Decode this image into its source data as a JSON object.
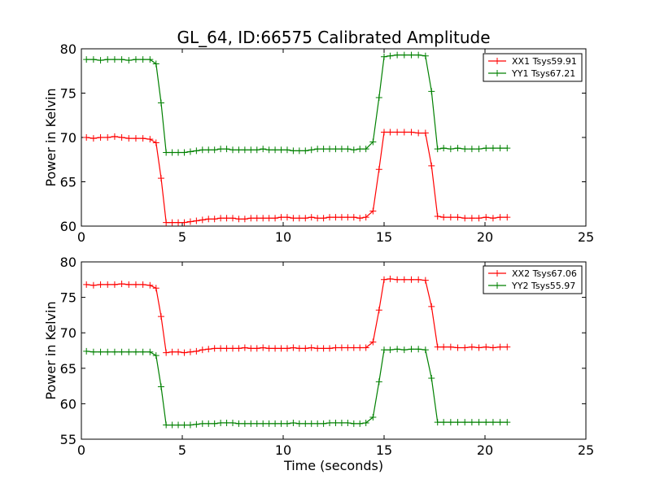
{
  "title": "GL_64, ID:66575 Calibrated Amplitude",
  "colors": {
    "red": "#ff0000",
    "green": "#008000"
  },
  "chart_data": [
    {
      "type": "line",
      "xlabel": "",
      "ylabel": "Power in Kelvin",
      "xlim": [
        0,
        25
      ],
      "ylim": [
        60,
        80
      ],
      "xticks": [
        "0",
        "5",
        "10",
        "15",
        "20",
        "25"
      ],
      "yticks": [
        "60",
        "65",
        "70",
        "75",
        "80"
      ],
      "grid": false,
      "legend_position": "top-right",
      "x": [
        0.25,
        0.6,
        0.95,
        1.3,
        1.65,
        2.0,
        2.35,
        2.7,
        3.05,
        3.4,
        3.7,
        3.95,
        4.2,
        4.5,
        4.8,
        5.1,
        5.4,
        5.7,
        6.0,
        6.3,
        6.6,
        6.9,
        7.2,
        7.5,
        7.8,
        8.1,
        8.4,
        8.7,
        9.0,
        9.3,
        9.6,
        9.9,
        10.2,
        10.5,
        10.8,
        11.1,
        11.4,
        11.7,
        12.0,
        12.3,
        12.6,
        12.9,
        13.2,
        13.5,
        13.8,
        14.1,
        14.45,
        14.75,
        15.0,
        15.3,
        15.65,
        16.0,
        16.35,
        16.7,
        17.05,
        17.35,
        17.65,
        17.95,
        18.3,
        18.65,
        19.0,
        19.35,
        19.7,
        20.05,
        20.4,
        20.75,
        21.1
      ],
      "series": [
        {
          "name": "XX1 Tsys59.91",
          "color": "#ff0000",
          "values": [
            70.0,
            69.9,
            70.0,
            70.0,
            70.1,
            70.0,
            69.9,
            69.9,
            69.9,
            69.8,
            69.4,
            65.4,
            60.4,
            60.4,
            60.4,
            60.4,
            60.5,
            60.6,
            60.7,
            60.8,
            60.8,
            60.9,
            60.9,
            60.9,
            60.8,
            60.8,
            60.9,
            60.9,
            60.9,
            60.9,
            60.9,
            61.0,
            61.0,
            60.9,
            60.9,
            60.9,
            61.0,
            60.9,
            60.9,
            61.0,
            61.0,
            61.0,
            61.0,
            61.0,
            60.9,
            61.0,
            61.7,
            66.4,
            70.6,
            70.6,
            70.6,
            70.6,
            70.6,
            70.5,
            70.5,
            66.8,
            61.1,
            61.0,
            61.0,
            61.0,
            60.9,
            60.9,
            60.9,
            61.0,
            60.9,
            61.0,
            61.0
          ]
        },
        {
          "name": "YY1 Tsys67.21",
          "color": "#008000",
          "values": [
            78.8,
            78.8,
            78.7,
            78.8,
            78.8,
            78.8,
            78.7,
            78.8,
            78.8,
            78.8,
            78.3,
            73.9,
            68.3,
            68.3,
            68.3,
            68.3,
            68.4,
            68.5,
            68.6,
            68.6,
            68.6,
            68.7,
            68.7,
            68.6,
            68.6,
            68.6,
            68.6,
            68.6,
            68.7,
            68.6,
            68.6,
            68.6,
            68.6,
            68.5,
            68.5,
            68.5,
            68.6,
            68.7,
            68.7,
            68.7,
            68.7,
            68.7,
            68.7,
            68.6,
            68.7,
            68.7,
            69.5,
            74.5,
            79.1,
            79.2,
            79.3,
            79.3,
            79.3,
            79.3,
            79.2,
            75.2,
            68.7,
            68.8,
            68.7,
            68.8,
            68.7,
            68.7,
            68.7,
            68.8,
            68.8,
            68.8,
            68.8
          ]
        }
      ]
    },
    {
      "type": "line",
      "xlabel": "Time (seconds)",
      "ylabel": "Power in Kelvin",
      "xlim": [
        0,
        25
      ],
      "ylim": [
        55,
        80
      ],
      "xticks": [
        "0",
        "5",
        "10",
        "15",
        "20",
        "25"
      ],
      "yticks": [
        "55",
        "60",
        "65",
        "70",
        "75",
        "80"
      ],
      "grid": false,
      "legend_position": "top-right",
      "x": [
        0.25,
        0.6,
        0.95,
        1.3,
        1.65,
        2.0,
        2.35,
        2.7,
        3.05,
        3.4,
        3.7,
        3.95,
        4.2,
        4.5,
        4.8,
        5.1,
        5.4,
        5.7,
        6.0,
        6.3,
        6.6,
        6.9,
        7.2,
        7.5,
        7.8,
        8.1,
        8.4,
        8.7,
        9.0,
        9.3,
        9.6,
        9.9,
        10.2,
        10.5,
        10.8,
        11.1,
        11.4,
        11.7,
        12.0,
        12.3,
        12.6,
        12.9,
        13.2,
        13.5,
        13.8,
        14.1,
        14.45,
        14.75,
        15.0,
        15.3,
        15.65,
        16.0,
        16.35,
        16.7,
        17.05,
        17.35,
        17.65,
        17.95,
        18.3,
        18.65,
        19.0,
        19.35,
        19.7,
        20.05,
        20.4,
        20.75,
        21.1
      ],
      "series": [
        {
          "name": "XX2 Tsys67.06",
          "color": "#ff0000",
          "values": [
            76.8,
            76.7,
            76.8,
            76.8,
            76.8,
            76.9,
            76.8,
            76.8,
            76.8,
            76.7,
            76.3,
            72.3,
            67.2,
            67.3,
            67.3,
            67.2,
            67.3,
            67.4,
            67.6,
            67.7,
            67.8,
            67.8,
            67.8,
            67.8,
            67.8,
            67.9,
            67.8,
            67.8,
            67.9,
            67.8,
            67.8,
            67.8,
            67.8,
            67.9,
            67.8,
            67.8,
            67.9,
            67.8,
            67.8,
            67.8,
            67.9,
            67.9,
            67.9,
            67.9,
            67.9,
            67.9,
            68.7,
            73.2,
            77.5,
            77.6,
            77.5,
            77.5,
            77.5,
            77.5,
            77.4,
            73.7,
            68.0,
            68.0,
            68.0,
            67.9,
            67.9,
            68.0,
            67.9,
            68.0,
            67.9,
            68.0,
            68.0
          ]
        },
        {
          "name": "YY2 Tsys55.97",
          "color": "#008000",
          "values": [
            67.4,
            67.3,
            67.3,
            67.3,
            67.3,
            67.3,
            67.3,
            67.3,
            67.3,
            67.3,
            66.8,
            62.4,
            57.0,
            57.0,
            57.0,
            57.0,
            57.0,
            57.1,
            57.2,
            57.2,
            57.2,
            57.3,
            57.3,
            57.3,
            57.2,
            57.2,
            57.2,
            57.2,
            57.2,
            57.2,
            57.2,
            57.2,
            57.2,
            57.3,
            57.2,
            57.2,
            57.2,
            57.2,
            57.2,
            57.3,
            57.3,
            57.3,
            57.3,
            57.2,
            57.2,
            57.3,
            58.1,
            63.1,
            67.6,
            67.6,
            67.7,
            67.6,
            67.7,
            67.7,
            67.6,
            63.6,
            57.4,
            57.4,
            57.4,
            57.4,
            57.4,
            57.4,
            57.4,
            57.4,
            57.4,
            57.4,
            57.4
          ]
        }
      ]
    }
  ]
}
